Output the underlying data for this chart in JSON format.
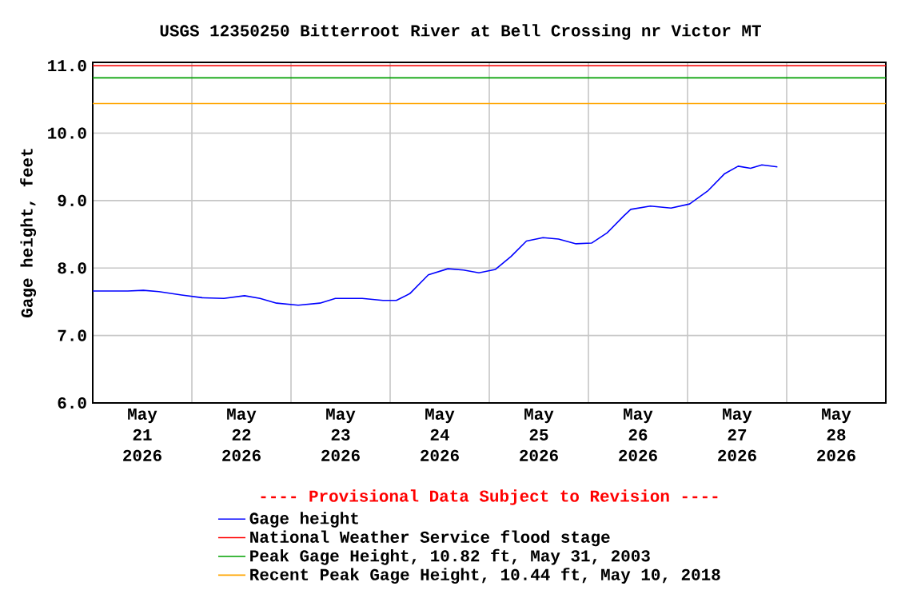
{
  "chart_data": {
    "type": "line",
    "title": "USGS 12350250 Bitterroot River at Bell Crossing nr Victor MT",
    "ylabel": "Gage height, feet",
    "annotations": [
      "---- Provisional Data Subject to Revision ----"
    ],
    "x": [
      "2026-05-21T00:00",
      "2026-05-21T08:30",
      "2026-05-21T12:15",
      "2026-05-21T16:00",
      "2026-05-21T21:30",
      "2026-05-22T02:30",
      "2026-05-22T07:45",
      "2026-05-22T12:45",
      "2026-05-22T16:30",
      "2026-05-22T20:30",
      "2026-05-23T01:45",
      "2026-05-23T07:00",
      "2026-05-23T10:45",
      "2026-05-23T17:15",
      "2026-05-23T22:15",
      "2026-05-24T01:30",
      "2026-05-24T04:45",
      "2026-05-24T09:15",
      "2026-05-24T14:00",
      "2026-05-24T17:45",
      "2026-05-24T21:30",
      "2026-05-25T01:30",
      "2026-05-25T05:15",
      "2026-05-25T09:00",
      "2026-05-25T13:00",
      "2026-05-25T16:45",
      "2026-05-25T21:00",
      "2026-05-26T00:45",
      "2026-05-26T04:30",
      "2026-05-26T08:30",
      "2026-05-26T10:15",
      "2026-05-26T15:00",
      "2026-05-26T20:00",
      "2026-05-27T00:30",
      "2026-05-27T05:00",
      "2026-05-27T09:00",
      "2026-05-27T12:15",
      "2026-05-27T15:15",
      "2026-05-27T18:00",
      "2026-05-27T21:45"
    ],
    "series": [
      {
        "name": "Gage height",
        "color": "#0000ff",
        "values": [
          7.66,
          7.66,
          7.67,
          7.65,
          7.6,
          7.56,
          7.55,
          7.59,
          7.55,
          7.48,
          7.45,
          7.48,
          7.55,
          7.55,
          7.52,
          7.52,
          7.62,
          7.9,
          7.99,
          7.97,
          7.93,
          7.98,
          8.17,
          8.4,
          8.45,
          8.43,
          8.36,
          8.37,
          8.52,
          8.77,
          8.87,
          8.92,
          8.89,
          8.95,
          9.15,
          9.4,
          9.51,
          9.48,
          9.53,
          9.5
        ]
      }
    ],
    "ref_lines": [
      {
        "axis": "y",
        "value": 11.0,
        "label": "National Weather Service flood stage",
        "color": "#ff0000"
      },
      {
        "axis": "y",
        "value": 10.82,
        "label": "Peak Gage Height, 10.82 ft, May 31, 2003",
        "color": "#00a000"
      },
      {
        "axis": "y",
        "value": 10.44,
        "label": "Recent Peak Gage Height, 10.44 ft, May 10, 2018",
        "color": "#ffa500"
      }
    ],
    "xlim": [
      "2026-05-21T00:00",
      "2026-05-29T00:00"
    ],
    "xticks": [
      {
        "value": "2026-05-21T12:00",
        "label": "May 21 2026"
      },
      {
        "value": "2026-05-22T00:00",
        "label": null
      },
      {
        "value": "2026-05-22T12:00",
        "label": "May 22 2026"
      },
      {
        "value": "2026-05-23T00:00",
        "label": null
      },
      {
        "value": "2026-05-23T12:00",
        "label": "May 23 2026"
      },
      {
        "value": "2026-05-24T00:00",
        "label": null
      },
      {
        "value": "2026-05-24T12:00",
        "label": "May 24 2026"
      },
      {
        "value": "2026-05-25T00:00",
        "label": null
      },
      {
        "value": "2026-05-25T12:00",
        "label": "May 25 2026"
      },
      {
        "value": "2026-05-26T00:00",
        "label": null
      },
      {
        "value": "2026-05-26T12:00",
        "label": "May 26 2026"
      },
      {
        "value": "2026-05-27T00:00",
        "label": null
      },
      {
        "value": "2026-05-27T12:00",
        "label": "May 27 2026"
      },
      {
        "value": "2026-05-28T00:00",
        "label": null
      },
      {
        "value": "2026-05-28T12:00",
        "label": "May 28 2026"
      }
    ],
    "ylim": [
      6.0,
      11.05
    ],
    "yticks": [
      {
        "value": 6,
        "label": "6.0"
      },
      {
        "value": 7,
        "label": "7.0"
      },
      {
        "value": 8,
        "label": "8.0"
      },
      {
        "value": 9,
        "label": "9.0"
      },
      {
        "value": 10,
        "label": "10.0"
      },
      {
        "value": 11,
        "label": "11.0"
      }
    ],
    "grid": true,
    "legend": "bottom",
    "marker": "none",
    "line_style": "solid"
  }
}
